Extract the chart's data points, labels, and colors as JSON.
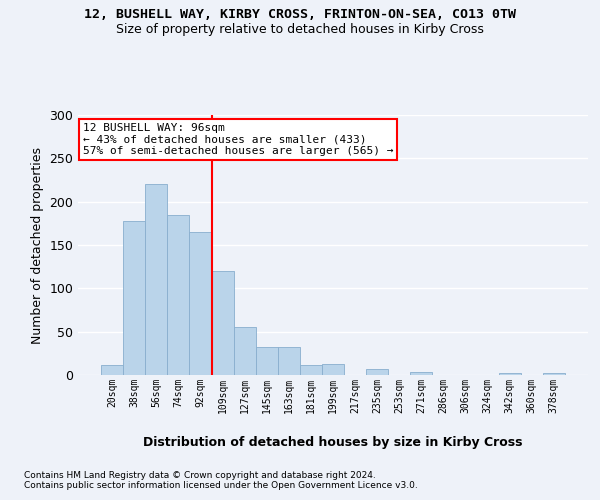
{
  "title1": "12, BUSHELL WAY, KIRBY CROSS, FRINTON-ON-SEA, CO13 0TW",
  "title2": "Size of property relative to detached houses in Kirby Cross",
  "xlabel": "Distribution of detached houses by size in Kirby Cross",
  "ylabel": "Number of detached properties",
  "categories": [
    "20sqm",
    "38sqm",
    "56sqm",
    "74sqm",
    "92sqm",
    "109sqm",
    "127sqm",
    "145sqm",
    "163sqm",
    "181sqm",
    "199sqm",
    "217sqm",
    "235sqm",
    "253sqm",
    "271sqm",
    "286sqm",
    "306sqm",
    "324sqm",
    "342sqm",
    "360sqm",
    "378sqm"
  ],
  "values": [
    11,
    178,
    220,
    185,
    165,
    120,
    55,
    32,
    32,
    11,
    13,
    0,
    7,
    0,
    3,
    0,
    0,
    0,
    2,
    0,
    2
  ],
  "bar_color": "#bad4ea",
  "bar_edge_color": "#88aece",
  "vline_color": "red",
  "vline_x_index": 4,
  "annotation_text": "12 BUSHELL WAY: 96sqm\n← 43% of detached houses are smaller (433)\n57% of semi-detached houses are larger (565) →",
  "annotation_box_color": "white",
  "annotation_box_edge_color": "red",
  "ylim": [
    0,
    300
  ],
  "yticks": [
    0,
    50,
    100,
    150,
    200,
    250,
    300
  ],
  "footer1": "Contains HM Land Registry data © Crown copyright and database right 2024.",
  "footer2": "Contains public sector information licensed under the Open Government Licence v3.0.",
  "background_color": "#eef2f9",
  "grid_color": "#ffffff"
}
